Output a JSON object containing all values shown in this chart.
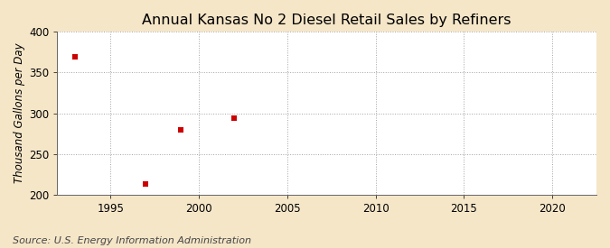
{
  "title": "Annual Kansas No 2 Diesel Retail Sales by Refiners",
  "ylabel": "Thousand Gallons per Day",
  "source": "Source: U.S. Energy Information Administration",
  "x_data": [
    1993,
    1997,
    1999,
    2002
  ],
  "y_data": [
    369,
    213,
    280,
    294
  ],
  "marker": "s",
  "marker_color": "#cc0000",
  "marker_size": 4,
  "xlim": [
    1992,
    2022.5
  ],
  "ylim": [
    200,
    400
  ],
  "xticks": [
    1995,
    2000,
    2005,
    2010,
    2015,
    2020
  ],
  "yticks": [
    200,
    250,
    300,
    350,
    400
  ],
  "outer_bg_color": "#f5e6c8",
  "plot_bg_color": "#ffffff",
  "grid_color": "#999999",
  "title_fontsize": 11.5,
  "label_fontsize": 8.5,
  "tick_fontsize": 8.5,
  "source_fontsize": 8
}
